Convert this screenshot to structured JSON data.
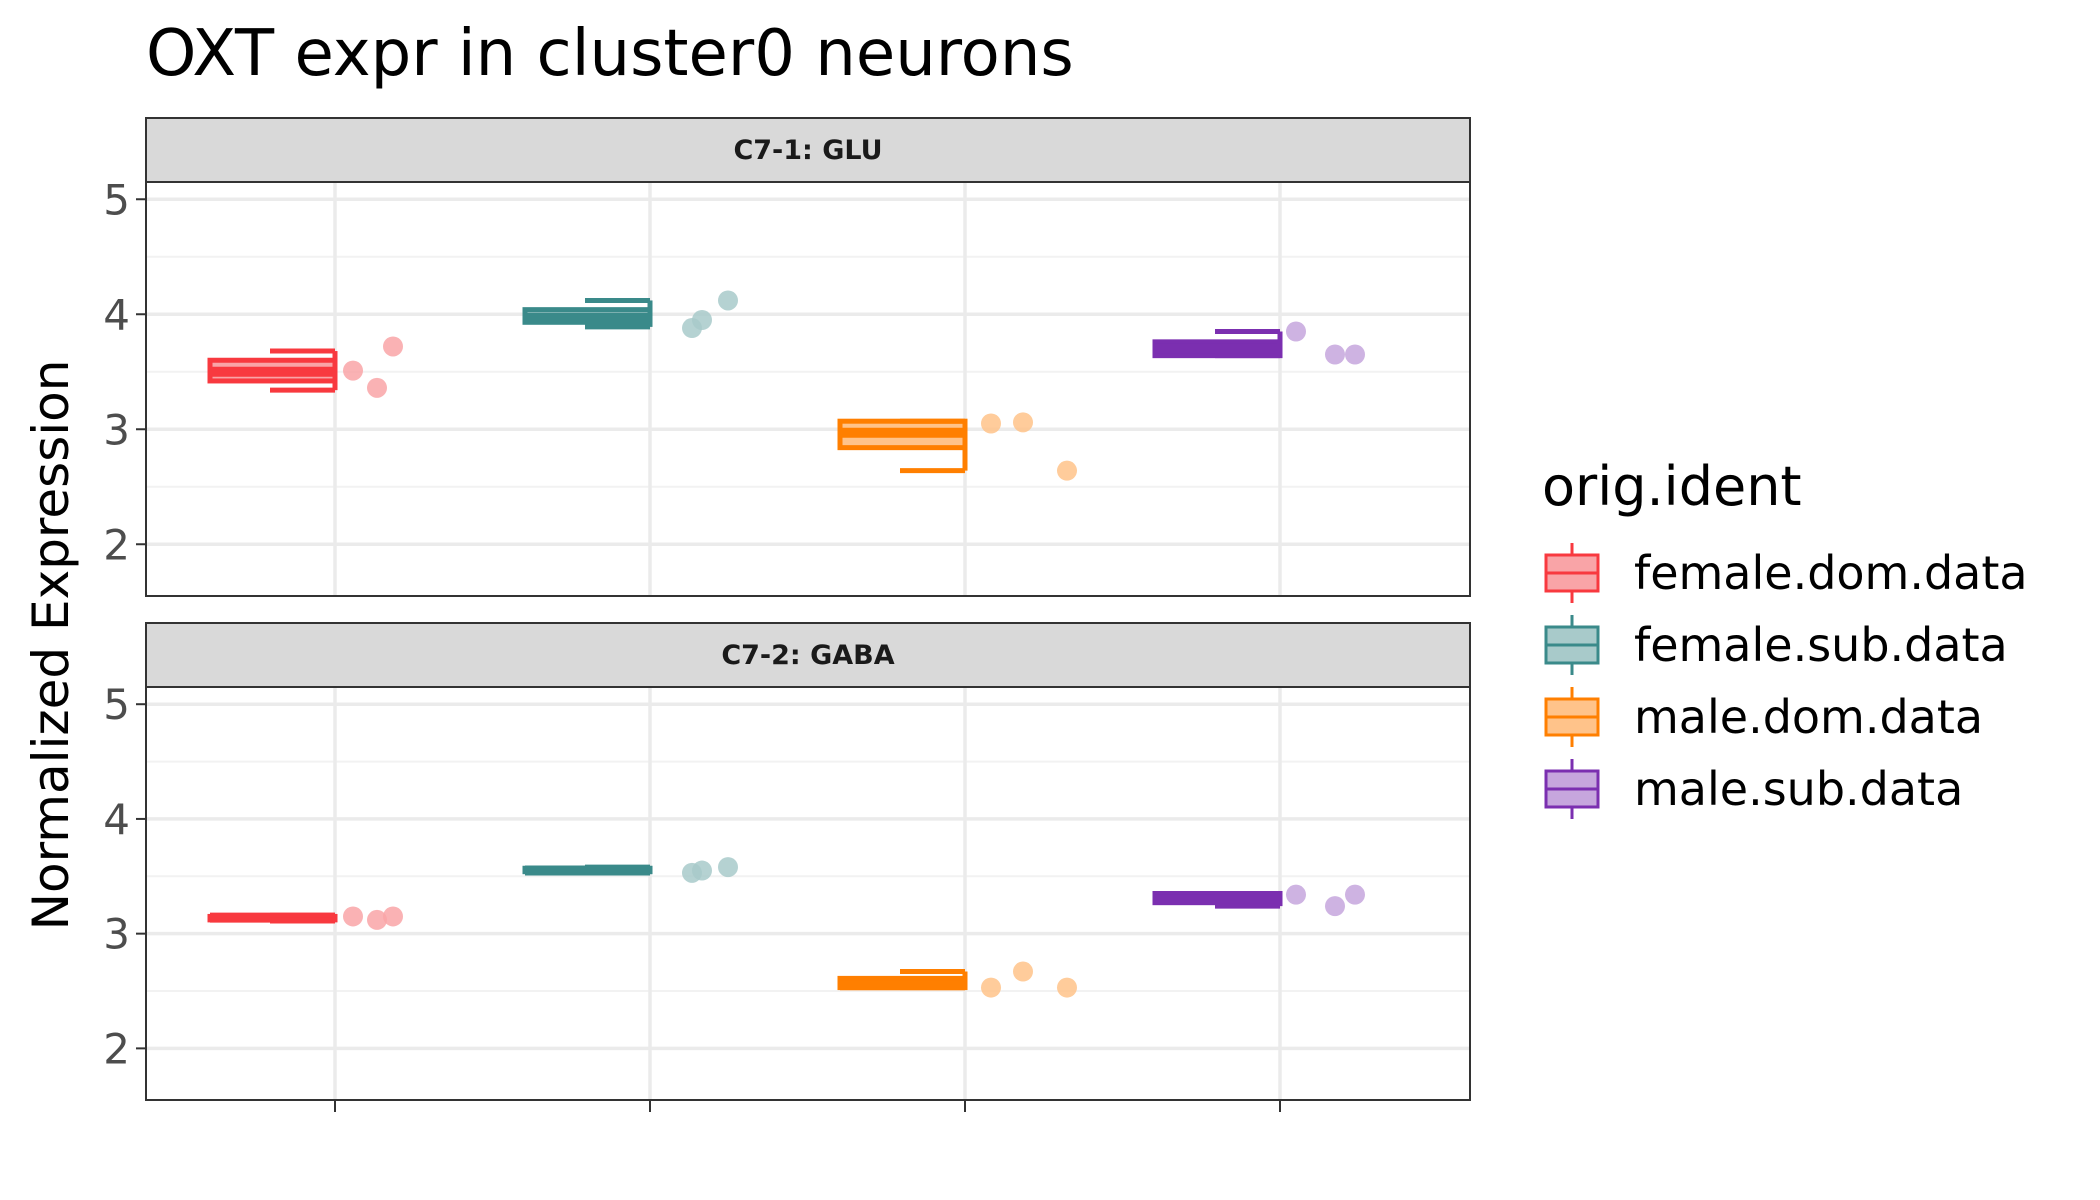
{
  "chart_data": {
    "type": "box",
    "title": "OXT expr in cluster0 neurons",
    "xlabel": "",
    "ylabel": "Normalized Expression",
    "ylim": [
      1.55,
      5.15
    ],
    "yticks": [
      2,
      3,
      4,
      5
    ],
    "grid": true,
    "legend": {
      "title": "orig.ident",
      "position": "right",
      "entries": [
        "female.dom.data",
        "female.sub.data",
        "male.dom.data",
        "male.sub.data"
      ]
    },
    "groups": [
      {
        "name": "female.dom.data",
        "color": "#F8393F",
        "fill": "#F9A4A7"
      },
      {
        "name": "female.sub.data",
        "color": "#3A8A8A",
        "fill": "#A8CACA"
      },
      {
        "name": "male.dom.data",
        "color": "#FF7F00",
        "fill": "#FFC38A"
      },
      {
        "name": "male.sub.data",
        "color": "#7B2FB0",
        "fill": "#C6A6DD"
      }
    ],
    "panels": [
      {
        "label": "C7-1: GLU",
        "boxes": [
          {
            "group": "female.dom.data",
            "min": 3.34,
            "q1": 3.42,
            "median": 3.5,
            "q3": 3.6,
            "max": 3.68,
            "points": [
              3.51,
              3.36,
              3.72
            ]
          },
          {
            "group": "female.sub.data",
            "min": 3.89,
            "q1": 3.93,
            "median": 3.97,
            "q3": 4.04,
            "max": 4.12,
            "points": [
              3.88,
              3.95,
              4.12
            ]
          },
          {
            "group": "male.dom.data",
            "min": 2.64,
            "q1": 2.84,
            "median": 2.97,
            "q3": 3.07,
            "max": 3.07,
            "points": [
              3.05,
              3.06,
              2.64
            ]
          },
          {
            "group": "male.sub.data",
            "min": 3.64,
            "q1": 3.64,
            "median": 3.7,
            "q3": 3.76,
            "max": 3.85,
            "points": [
              3.85,
              3.65,
              3.65
            ]
          }
        ]
      },
      {
        "label": "C7-2: GABA",
        "boxes": [
          {
            "group": "female.dom.data",
            "min": 3.11,
            "q1": 3.12,
            "median": 3.14,
            "q3": 3.15,
            "max": 3.16,
            "points": [
              3.15,
              3.12,
              3.15
            ]
          },
          {
            "group": "female.sub.data",
            "min": 3.53,
            "q1": 3.54,
            "median": 3.55,
            "q3": 3.57,
            "max": 3.58,
            "points": [
              3.53,
              3.55,
              3.58
            ]
          },
          {
            "group": "male.dom.data",
            "min": 2.53,
            "q1": 2.53,
            "median": 2.55,
            "q3": 2.61,
            "max": 2.67,
            "points": [
              2.53,
              2.67,
              2.53
            ]
          },
          {
            "group": "male.sub.data",
            "min": 3.24,
            "q1": 3.27,
            "median": 3.3,
            "q3": 3.35,
            "max": 3.35,
            "points": [
              3.34,
              3.24,
              3.34
            ]
          }
        ]
      }
    ]
  }
}
